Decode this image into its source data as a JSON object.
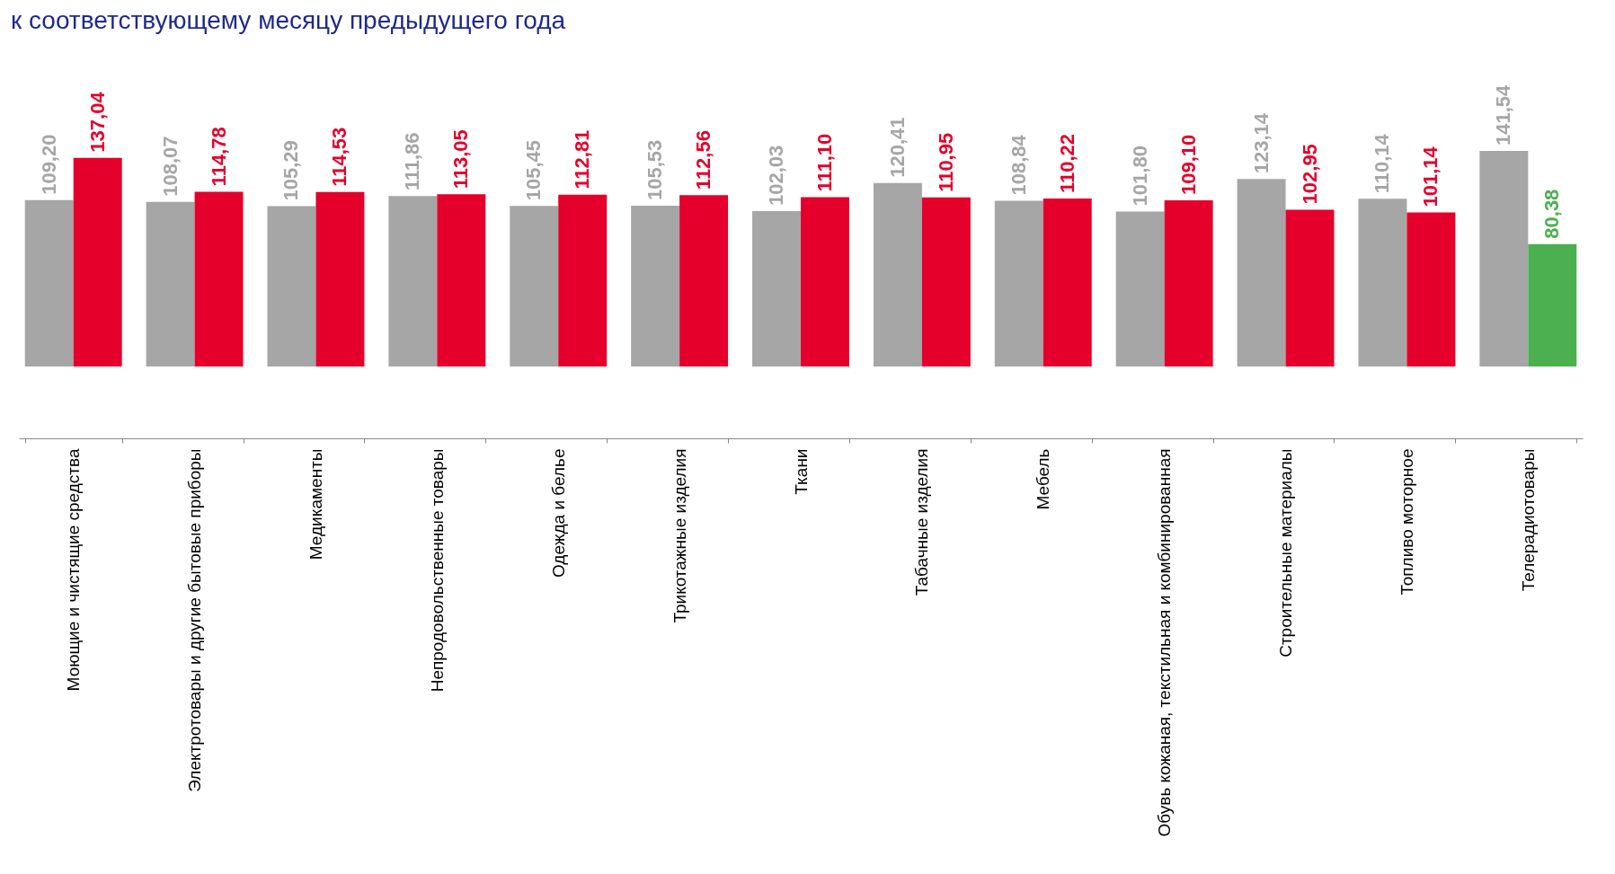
{
  "chart_data": {
    "type": "bar",
    "title": "к соответствующему месяцу предыдущего года",
    "categories": [
      "Моющие и чистящие средства",
      "Электротовары и другие бытовые приборы",
      "Медикаменты",
      "Непродовольственные товары",
      "Одежда и белье",
      "Трикотажные изделия",
      "Ткани",
      "Табачные изделия",
      "Мебель",
      "Обувь кожаная, текстильная и комбинированная",
      "Строительные материалы",
      "Топливо моторное",
      "Телерадиотовары"
    ],
    "series": [
      {
        "color": "#a6a6a6",
        "values": [
          109.2,
          108.07,
          105.29,
          111.86,
          105.45,
          105.53,
          102.03,
          120.41,
          108.84,
          101.8,
          123.14,
          110.14,
          141.54
        ],
        "value_labels": [
          "109,20",
          "108,07",
          "105,29",
          "111,86",
          "105,45",
          "105,53",
          "102,03",
          "120,41",
          "108,84",
          "101,80",
          "123,14",
          "110,14",
          "141,54"
        ]
      },
      {
        "colors": [
          "#e4002b",
          "#e4002b",
          "#e4002b",
          "#e4002b",
          "#e4002b",
          "#e4002b",
          "#e4002b",
          "#e4002b",
          "#e4002b",
          "#e4002b",
          "#e4002b",
          "#e4002b",
          "#4caf50"
        ],
        "values": [
          137.04,
          114.78,
          114.53,
          113.05,
          112.81,
          112.56,
          111.1,
          110.95,
          110.22,
          109.1,
          102.95,
          101.14,
          80.38
        ],
        "value_labels": [
          "137,04",
          "114,78",
          "114,53",
          "113,05",
          "112,81",
          "112,56",
          "111,10",
          "110,95",
          "110,22",
          "109,10",
          "102,95",
          "101,14",
          "80,38"
        ]
      }
    ],
    "tick_labels": "x",
    "grid": false
  }
}
